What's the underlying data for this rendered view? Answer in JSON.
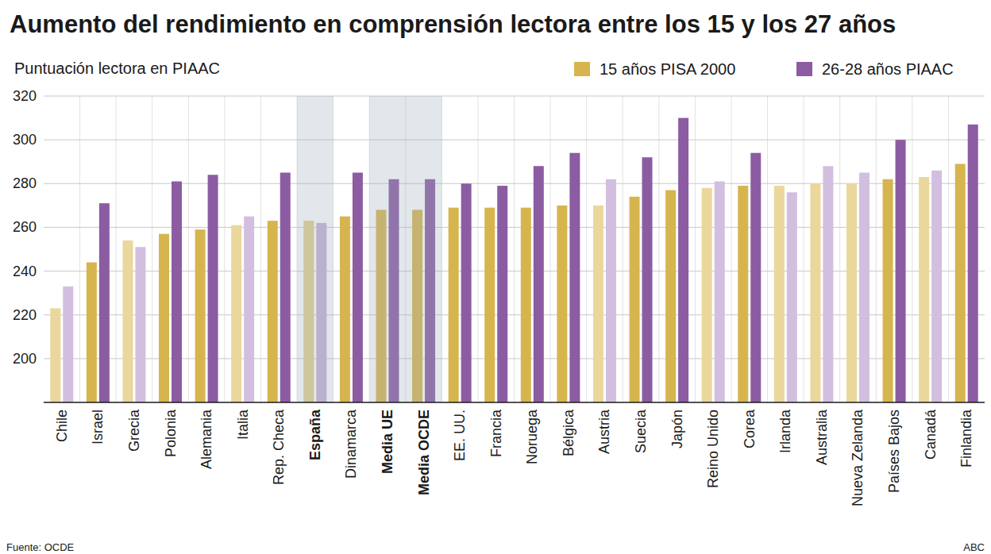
{
  "chart_data": {
    "type": "bar",
    "title": "Aumento del rendimiento en comprensión lectora entre los 15 y los 27 años",
    "ylabel": "Puntuación lectora en PIAAC",
    "annotations": [
      "Fuente: OCDE",
      "ABC"
    ],
    "categories": [
      "Chile",
      "Israel",
      "Grecia",
      "Polonia",
      "Alemania",
      "Italia",
      "Rep. Checa",
      "España",
      "Dinamarca",
      "Media UE",
      "Media OCDE",
      "EE. UU.",
      "Francia",
      "Noruega",
      "Bélgica",
      "Austria",
      "Suecia",
      "Japón",
      "Reino Unido",
      "Corea",
      "Irlanda",
      "Australia",
      "Nueva Zelanda",
      "Países Bajos",
      "Canadá",
      "Finlandia"
    ],
    "series": [
      {
        "name": "15 años PISA 2000",
        "color": "#d6b54f",
        "values": [
          223,
          244,
          254,
          257,
          259,
          261,
          263,
          263,
          265,
          268,
          268,
          269,
          269,
          269,
          270,
          270,
          274,
          277,
          278,
          279,
          279,
          280,
          280,
          282,
          283,
          289
        ],
        "colors": [
          "#ead79c",
          "#d6b54f",
          "#ead79c",
          "#d6b54f",
          "#d6b54f",
          "#ead79c",
          "#d6b54f",
          "#e3cf8f",
          "#d6b54f",
          "#d6b54f",
          "#d6b54f",
          "#d6b54f",
          "#d6b54f",
          "#d6b54f",
          "#d6b54f",
          "#ead79c",
          "#d6b54f",
          "#d6b54f",
          "#ead79c",
          "#d6b54f",
          "#ead79c",
          "#ead79c",
          "#ead79c",
          "#d6b54f",
          "#ead79c",
          "#d6b54f"
        ]
      },
      {
        "name": "26-28 años PIAAC",
        "color": "#8c5ca3",
        "values": [
          233,
          271,
          251,
          281,
          284,
          265,
          285,
          262,
          285,
          282,
          282,
          280,
          279,
          288,
          294,
          282,
          292,
          310,
          281,
          294,
          276,
          288,
          285,
          300,
          286,
          307
        ],
        "colors": [
          "#d2bfdf",
          "#8c5ca3",
          "#d2bfdf",
          "#8c5ca3",
          "#8c5ca3",
          "#d2bfdf",
          "#8c5ca3",
          "#c4b2d4",
          "#8c5ca3",
          "#8c5ca3",
          "#8c5ca3",
          "#8c5ca3",
          "#8c5ca3",
          "#8c5ca3",
          "#8c5ca3",
          "#d2bfdf",
          "#8c5ca3",
          "#8c5ca3",
          "#d2bfdf",
          "#8c5ca3",
          "#d2bfdf",
          "#d2bfdf",
          "#d2bfdf",
          "#8c5ca3",
          "#d2bfdf",
          "#8c5ca3"
        ]
      }
    ],
    "ylim": [
      180,
      320
    ],
    "yticks": [
      200,
      220,
      240,
      260,
      280,
      300,
      320
    ],
    "grid": true,
    "legend": "top-right"
  }
}
